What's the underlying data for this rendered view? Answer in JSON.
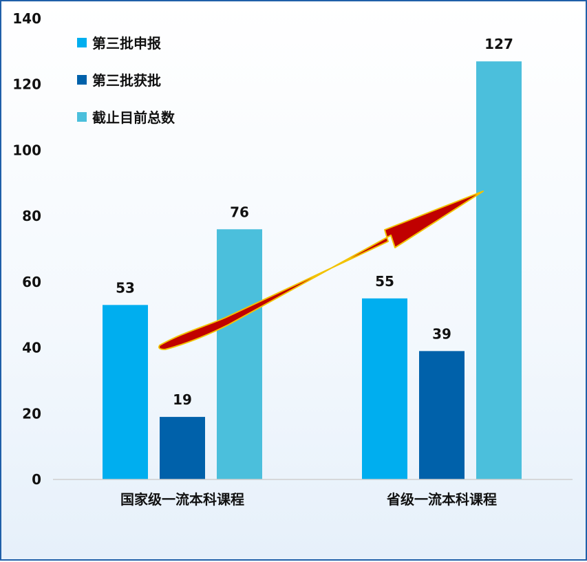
{
  "chart_data": {
    "type": "bar",
    "categories": [
      "国家级一流本科课程",
      "省级一流本科课程"
    ],
    "series": [
      {
        "name": "第三批申报",
        "values": [
          53,
          55
        ],
        "color": "#00aeef"
      },
      {
        "name": "第三批获批",
        "values": [
          19,
          39
        ],
        "color": "#0061aa"
      },
      {
        "name": "截止目前总数",
        "values": [
          76,
          127
        ],
        "color": "#4bbfdc"
      }
    ],
    "yticks": [
      0,
      20,
      40,
      60,
      80,
      100,
      120,
      140
    ],
    "ylim": [
      0,
      140
    ],
    "legend_position": "top-left",
    "grid": false,
    "annotation": {
      "type": "arrow",
      "from_category": "国家级一流本科课程",
      "to_category": "省级一流本科课程",
      "color": "#c00000",
      "outline_color": "#f2c200"
    }
  }
}
